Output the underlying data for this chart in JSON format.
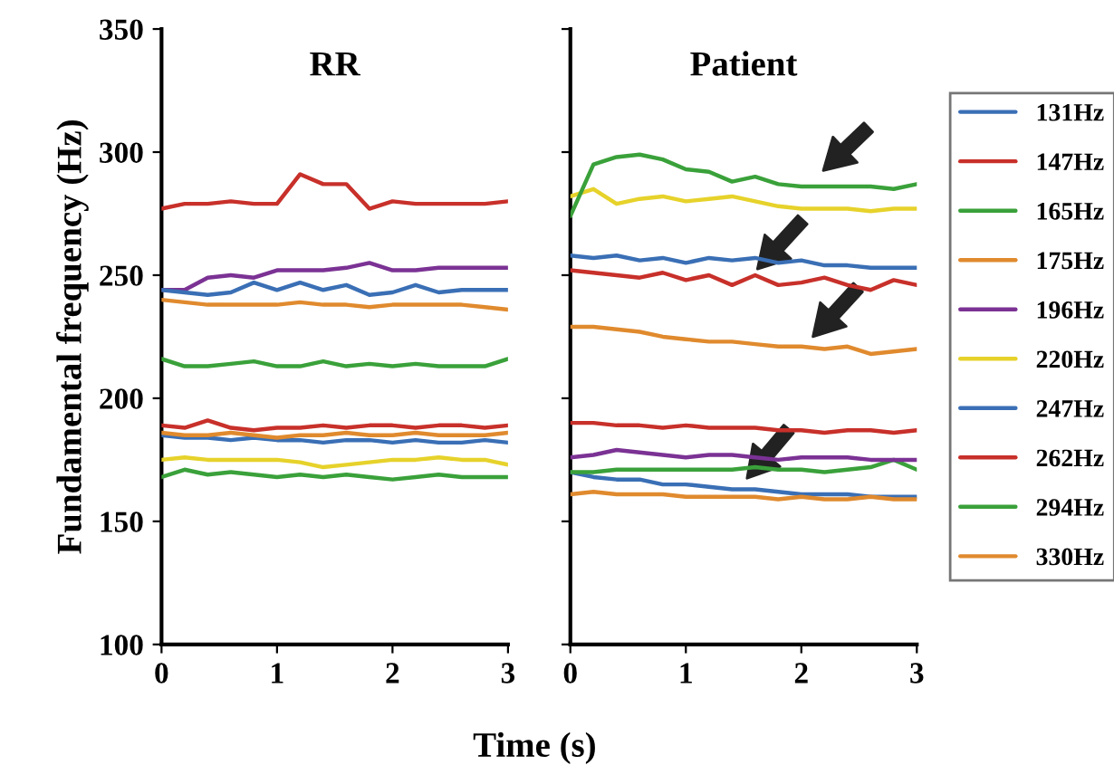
{
  "chart_data": [
    {
      "type": "line",
      "title": "RR",
      "ylabel": "Fundamental frequency (Hz)",
      "xlabel": "Time (s)",
      "x": [
        0,
        0.2,
        0.4,
        0.6,
        0.8,
        1.0,
        1.2,
        1.4,
        1.6,
        1.8,
        2.0,
        2.2,
        2.4,
        2.6,
        2.8,
        3.0
      ],
      "xlim": [
        0,
        3
      ],
      "xticks": [
        0,
        1,
        2,
        3
      ],
      "ylim": [
        100,
        350
      ],
      "yticks": [
        100,
        150,
        200,
        250,
        300,
        350
      ],
      "grid": false,
      "legend": false,
      "series": [
        {
          "color": "#3a6fb5",
          "values": [
            185,
            184,
            184,
            183,
            184,
            183,
            183,
            182,
            183,
            183,
            182,
            183,
            182,
            182,
            183,
            182
          ]
        },
        {
          "color": "#c8302a",
          "values": [
            189,
            188,
            191,
            188,
            187,
            188,
            188,
            189,
            188,
            189,
            189,
            188,
            189,
            189,
            188,
            189
          ]
        },
        {
          "color": "#3aa13a",
          "values": [
            168,
            171,
            169,
            170,
            169,
            168,
            169,
            168,
            169,
            168,
            167,
            168,
            169,
            168,
            168,
            168
          ]
        },
        {
          "color": "#e08a2e",
          "values": [
            186,
            185,
            185,
            186,
            185,
            184,
            185,
            185,
            186,
            185,
            185,
            186,
            185,
            185,
            185,
            186
          ]
        },
        {
          "color": "#7b3294",
          "values": [
            244,
            244,
            249,
            250,
            249,
            252,
            252,
            252,
            253,
            255,
            252,
            252,
            253,
            253,
            253,
            253
          ]
        },
        {
          "color": "#e6d22a",
          "values": [
            175,
            176,
            175,
            175,
            175,
            175,
            174,
            172,
            173,
            174,
            175,
            175,
            176,
            175,
            175,
            173
          ]
        },
        {
          "color": "#3a6fb5",
          "values": [
            244,
            243,
            242,
            243,
            247,
            244,
            247,
            244,
            246,
            242,
            243,
            246,
            243,
            244,
            244,
            244
          ]
        },
        {
          "color": "#c8302a",
          "values": [
            277,
            279,
            279,
            280,
            279,
            279,
            291,
            287,
            287,
            277,
            280,
            279,
            279,
            279,
            279,
            280
          ]
        },
        {
          "color": "#3aa13a",
          "values": [
            216,
            213,
            213,
            214,
            215,
            213,
            213,
            215,
            213,
            214,
            213,
            214,
            213,
            213,
            213,
            216
          ]
        },
        {
          "color": "#e08a2e",
          "values": [
            240,
            239,
            238,
            238,
            238,
            238,
            239,
            238,
            238,
            237,
            238,
            238,
            238,
            238,
            237,
            236
          ]
        }
      ]
    },
    {
      "type": "line",
      "title": "Patient",
      "x": [
        0,
        0.2,
        0.4,
        0.6,
        0.8,
        1.0,
        1.2,
        1.4,
        1.6,
        1.8,
        2.0,
        2.2,
        2.4,
        2.6,
        2.8,
        3.0
      ],
      "xlim": [
        0,
        3
      ],
      "xticks": [
        0,
        1,
        2,
        3
      ],
      "ylim": [
        100,
        350
      ],
      "yticks": [
        100,
        150,
        200,
        250,
        300,
        350
      ],
      "tick_labels": "x",
      "grid": false,
      "legend": "right",
      "series": [
        {
          "name": "131Hz",
          "color": "#3a6fb5",
          "values": [
            170,
            168,
            167,
            167,
            165,
            165,
            164,
            163,
            163,
            162,
            161,
            161,
            161,
            160,
            160,
            160
          ]
        },
        {
          "name": "147Hz",
          "color": "#c8302a",
          "values": [
            190,
            190,
            189,
            189,
            188,
            189,
            188,
            188,
            188,
            187,
            187,
            186,
            187,
            187,
            186,
            187
          ]
        },
        {
          "name": "165Hz",
          "color": "#3aa13a",
          "values": [
            170,
            170,
            171,
            171,
            171,
            171,
            171,
            171,
            172,
            171,
            171,
            170,
            171,
            172,
            175,
            171
          ]
        },
        {
          "name": "175Hz",
          "color": "#e08a2e",
          "values": [
            161,
            162,
            161,
            161,
            161,
            160,
            160,
            160,
            160,
            159,
            160,
            159,
            159,
            160,
            159,
            159
          ]
        },
        {
          "name": "196Hz",
          "color": "#7b3294",
          "values": [
            176,
            177,
            179,
            178,
            177,
            176,
            177,
            177,
            176,
            175,
            176,
            176,
            176,
            175,
            175,
            175
          ]
        },
        {
          "name": "220Hz",
          "color": "#e6d22a",
          "values": [
            282,
            285,
            279,
            281,
            282,
            280,
            281,
            282,
            280,
            278,
            277,
            277,
            277,
            276,
            277,
            277
          ]
        },
        {
          "name": "247Hz",
          "color": "#3a6fb5",
          "values": [
            258,
            257,
            258,
            256,
            257,
            255,
            257,
            256,
            257,
            255,
            256,
            254,
            254,
            253,
            253,
            253
          ]
        },
        {
          "name": "262Hz",
          "color": "#c8302a",
          "values": [
            252,
            251,
            250,
            249,
            251,
            248,
            250,
            246,
            250,
            246,
            247,
            249,
            246,
            244,
            248,
            246
          ]
        },
        {
          "name": "294Hz",
          "color": "#3aa13a",
          "values": [
            274,
            295,
            298,
            299,
            297,
            293,
            292,
            288,
            290,
            287,
            286,
            286,
            286,
            286,
            285,
            287
          ]
        },
        {
          "name": "330Hz",
          "color": "#e08a2e",
          "values": [
            229,
            229,
            228,
            227,
            225,
            224,
            223,
            223,
            222,
            221,
            221,
            220,
            221,
            218,
            219,
            220
          ]
        }
      ]
    }
  ]
}
